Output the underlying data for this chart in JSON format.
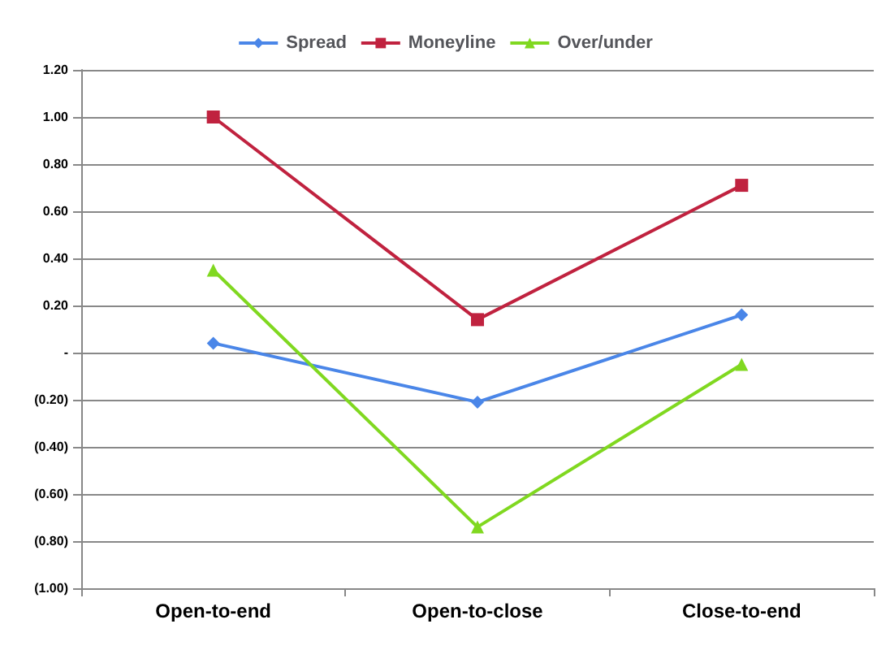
{
  "chart_data": {
    "type": "line",
    "categories": [
      "Open-to-end",
      "Open-to-close",
      "Close-to-end"
    ],
    "series": [
      {
        "name": "Spread",
        "color": "#4a86e8",
        "marker": "diamond",
        "values": [
          0.04,
          -0.21,
          0.16
        ]
      },
      {
        "name": "Moneyline",
        "color": "#c0223f",
        "marker": "square",
        "values": [
          1.0,
          0.14,
          0.71
        ]
      },
      {
        "name": "Over/under",
        "color": "#80d820",
        "marker": "triangle",
        "values": [
          0.35,
          -0.74,
          -0.05
        ]
      }
    ],
    "ylim": [
      -1.0,
      1.2
    ],
    "yticks": [
      {
        "value": -1.0,
        "label": "(1.00)"
      },
      {
        "value": -0.8,
        "label": "(0.80)"
      },
      {
        "value": -0.6,
        "label": "(0.60)"
      },
      {
        "value": -0.4,
        "label": "(0.40)"
      },
      {
        "value": -0.2,
        "label": "(0.20)"
      },
      {
        "value": 0,
        "label": "-"
      },
      {
        "value": 0.2,
        "label": "0.20"
      },
      {
        "value": 0.4,
        "label": "0.40"
      },
      {
        "value": 0.6,
        "label": "0.60"
      },
      {
        "value": 0.8,
        "label": "0.80"
      },
      {
        "value": 1.0,
        "label": "1.00"
      },
      {
        "value": 1.2,
        "label": "1.20"
      }
    ],
    "grid": "y",
    "legend": "top",
    "line_style": "solid"
  }
}
